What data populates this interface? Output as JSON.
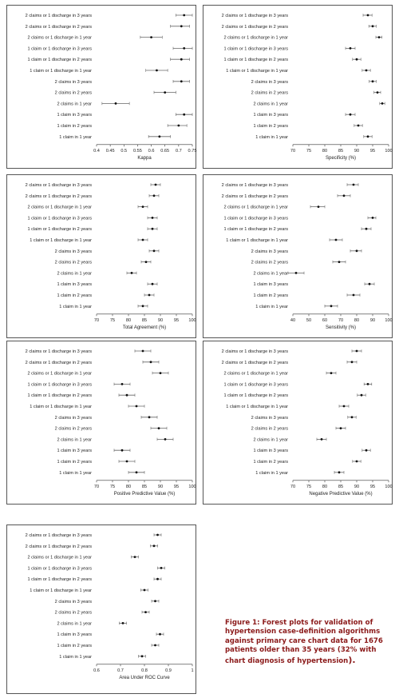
{
  "rows": [
    "2 claims or 1 discharge in 3 years",
    "2 claims or 1 discharge in 2 years",
    "2 claims or 1 discharge in 1 year",
    "1 claim or 1 discharge in 3 years",
    "1 claim or 1 discharge in 2 years",
    "1 claim or 1 discharge in 1 year",
    "2 claims in 3 years",
    "2 claims in 2 years",
    "2 claims in 1 year",
    "1 claim in 3 years",
    "1 claim in 2 years",
    "1 claim in 1 year"
  ],
  "caption": {
    "text": "Figure 1: Forest plots for validation of hypertension case-definition algorithms against primary care chart data for 1676 patients older than 35 years (32% with chart diagnosis of hypertension",
    "end": ")."
  },
  "chart_data": [
    {
      "type": "forest",
      "xlabel": "Kappa",
      "xlim": [
        0.4,
        0.75
      ],
      "ticks": [
        "0.4",
        "0.45",
        "0.5",
        "0.55",
        "0.6",
        "0.65",
        "0.7",
        "0.75"
      ],
      "estimate": [
        0.72,
        0.71,
        0.6,
        0.72,
        0.71,
        0.62,
        0.71,
        0.65,
        0.47,
        0.72,
        0.7,
        0.63
      ],
      "lower": [
        0.69,
        0.67,
        0.56,
        0.68,
        0.67,
        0.58,
        0.68,
        0.61,
        0.42,
        0.69,
        0.66,
        0.59
      ],
      "upper": [
        0.75,
        0.74,
        0.64,
        0.75,
        0.74,
        0.66,
        0.74,
        0.69,
        0.52,
        0.75,
        0.73,
        0.67
      ]
    },
    {
      "type": "forest",
      "xlabel": "Specificity (%)",
      "xlim": [
        70,
        100
      ],
      "ticks": [
        "70",
        "75",
        "80",
        "85",
        "90",
        "95",
        "100"
      ],
      "estimate": [
        93.5,
        95,
        97,
        88,
        90,
        93,
        95,
        96.5,
        98,
        88,
        90.5,
        93.5
      ],
      "lower": [
        92,
        93.8,
        96,
        86.5,
        88.7,
        91.7,
        93.9,
        95.4,
        97.2,
        86.5,
        89.2,
        92.2
      ],
      "upper": [
        94.8,
        96.1,
        97.9,
        89.5,
        91.3,
        94.3,
        96.1,
        97.5,
        98.8,
        89.5,
        91.8,
        94.8
      ]
    },
    {
      "type": "forest",
      "xlabel": "Total Agreement (%)",
      "xlim": [
        70,
        100
      ],
      "ticks": [
        "70",
        "75",
        "80",
        "85",
        "90",
        "95",
        "100"
      ],
      "estimate": [
        88.5,
        88,
        84.5,
        87.5,
        87.5,
        84.5,
        88,
        85.5,
        81,
        87.5,
        86.5,
        84.5
      ],
      "lower": [
        87,
        86.5,
        83,
        86,
        86,
        83,
        86.5,
        84,
        79.5,
        86,
        85,
        83
      ],
      "upper": [
        90,
        89.5,
        86,
        89,
        89,
        86,
        89.5,
        87,
        82.5,
        89,
        88,
        86
      ]
    },
    {
      "type": "forest",
      "xlabel": "Sensitivity (%)",
      "xlim": [
        40,
        100
      ],
      "ticks": [
        "40",
        "50",
        "60",
        "70",
        "80",
        "90",
        "100"
      ],
      "estimate": [
        78,
        72,
        56,
        90,
        86,
        67,
        80,
        69,
        42,
        88,
        78,
        64
      ],
      "lower": [
        74,
        68,
        51,
        87,
        83,
        63,
        76,
        65,
        37,
        85,
        74,
        60
      ],
      "upper": [
        81,
        76,
        60,
        92,
        89,
        71,
        83,
        73,
        47,
        91,
        82,
        68
      ]
    },
    {
      "type": "forest",
      "xlabel": "Positive Predictive Value (%)",
      "xlim": [
        70,
        100
      ],
      "ticks": [
        "70",
        "75",
        "80",
        "85",
        "90",
        "95",
        "100"
      ],
      "estimate": [
        84.5,
        87,
        90,
        78,
        79.5,
        82.5,
        86.5,
        89.5,
        91.5,
        78,
        79.5,
        82.5
      ],
      "lower": [
        82,
        84.5,
        87.5,
        75.5,
        77,
        80,
        84,
        87,
        89,
        75.5,
        77,
        80
      ],
      "upper": [
        87,
        89.5,
        92.5,
        80.5,
        82,
        85,
        89,
        92,
        94,
        80.5,
        82,
        85
      ]
    },
    {
      "type": "forest",
      "xlabel": "Negative Predictive Value (%)",
      "xlim": [
        70,
        100
      ],
      "ticks": [
        "70",
        "75",
        "80",
        "85",
        "90",
        "95",
        "100"
      ],
      "estimate": [
        90,
        88.5,
        82,
        93.5,
        91.5,
        86,
        88.5,
        85,
        79,
        93,
        90,
        84.5
      ],
      "lower": [
        88.5,
        87,
        80.5,
        92.3,
        90.2,
        84.5,
        87.2,
        83.5,
        77.5,
        91.7,
        88.7,
        83
      ],
      "upper": [
        91.5,
        90,
        83.5,
        94.7,
        92.8,
        87.5,
        89.8,
        86.5,
        80.5,
        94.3,
        91.3,
        86
      ]
    },
    {
      "type": "forest",
      "xlabel": "Area Under ROC Curve",
      "xlim": [
        0.6,
        1
      ],
      "ticks": [
        "0.6",
        "0.7",
        "0.8",
        "0.9",
        "1"
      ],
      "estimate": [
        0.855,
        0.84,
        0.76,
        0.87,
        0.855,
        0.8,
        0.845,
        0.805,
        0.71,
        0.865,
        0.845,
        0.79
      ],
      "lower": [
        0.84,
        0.825,
        0.745,
        0.855,
        0.84,
        0.785,
        0.83,
        0.79,
        0.695,
        0.85,
        0.83,
        0.775
      ],
      "upper": [
        0.87,
        0.855,
        0.775,
        0.885,
        0.87,
        0.815,
        0.86,
        0.82,
        0.725,
        0.88,
        0.86,
        0.805
      ]
    }
  ]
}
